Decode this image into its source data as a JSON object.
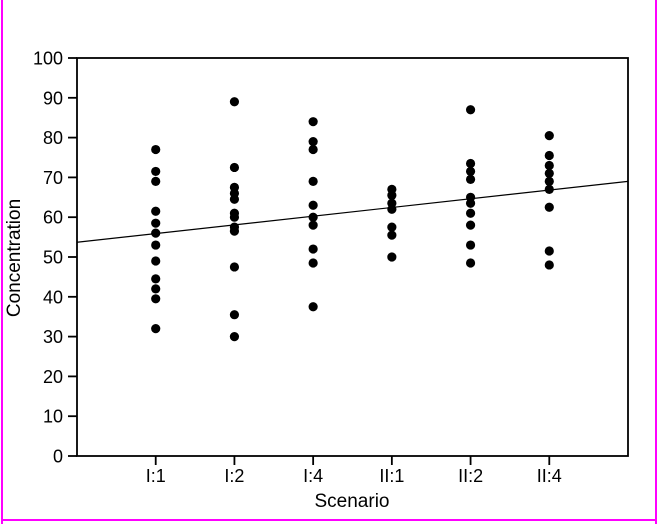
{
  "chart_data": {
    "type": "scatter",
    "title": "",
    "xlabel": "Scenario",
    "ylabel": "Concentration",
    "ylim": [
      0,
      100
    ],
    "y_ticks": [
      0,
      10,
      20,
      30,
      40,
      50,
      60,
      70,
      80,
      90,
      100
    ],
    "grid": "off",
    "legend": "none",
    "categories": [
      "I:1",
      "I:2",
      "I:4",
      "II:1",
      "II:2",
      "II:4"
    ],
    "series": [
      {
        "name": "I:1",
        "values": [
          77,
          71.5,
          69,
          61.5,
          58.5,
          56,
          53,
          49,
          44.5,
          42,
          39.5,
          32
        ]
      },
      {
        "name": "I:2",
        "values": [
          89,
          72.5,
          67.5,
          66,
          64.5,
          61,
          60,
          57.5,
          56.5,
          47.5,
          35.5,
          30
        ]
      },
      {
        "name": "I:4",
        "values": [
          84,
          79,
          77,
          69,
          63,
          60,
          58,
          52,
          48.5,
          37.5
        ]
      },
      {
        "name": "II:1",
        "values": [
          67,
          65.5,
          63.5,
          62,
          57.5,
          55.5,
          50
        ]
      },
      {
        "name": "II:2",
        "values": [
          87,
          73.5,
          71.5,
          69.5,
          65,
          63.5,
          61,
          58,
          53,
          48.5
        ]
      },
      {
        "name": "II:4",
        "values": [
          80.5,
          75.5,
          73,
          71,
          69,
          67,
          62.5,
          51.5,
          48
        ]
      }
    ],
    "trend_line": {
      "start_value": 53.7,
      "end_value": 69.0
    },
    "point_color": "#000000",
    "line_color": "#000000",
    "frame_color": "#000000",
    "page_border_color": "#ff00ff"
  }
}
